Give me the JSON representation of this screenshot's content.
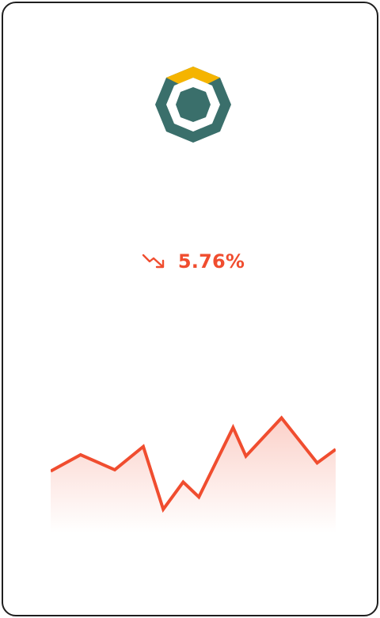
{
  "coin": {
    "logo_icon": "komodo-octagon-logo-icon",
    "colors": {
      "primary": "#3a6f6b",
      "accent": "#f5b400"
    }
  },
  "change": {
    "direction": "down",
    "trend_icon": "trend-down-arrow-icon",
    "value": "5.76%",
    "color": "#f04d2f"
  },
  "chart_data": {
    "type": "area",
    "color": "#f04d2f",
    "values": [
      45,
      57,
      46,
      63,
      17,
      37,
      26,
      77,
      56,
      84,
      51,
      61
    ]
  }
}
